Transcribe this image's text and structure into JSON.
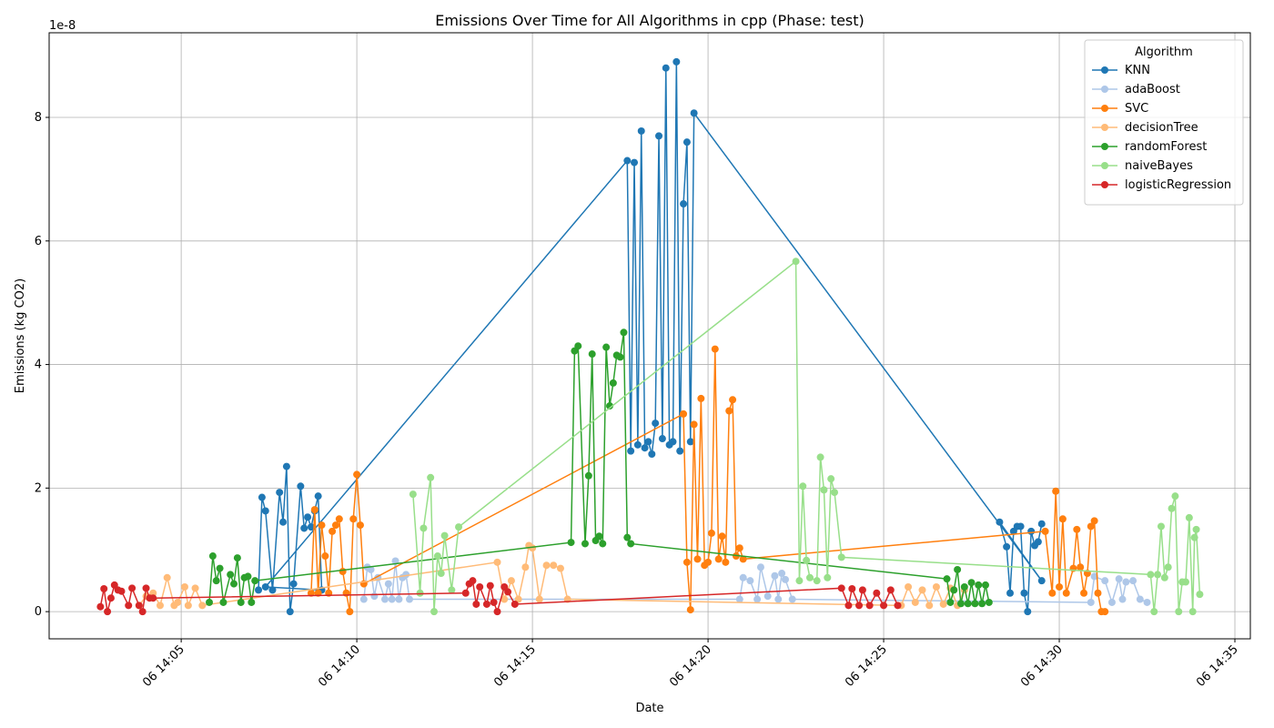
{
  "chart_data": {
    "type": "line",
    "title": "Emissions Over Time for All Algorithms in cpp (Phase: test)",
    "x_label": "Date",
    "y_label": "Emissions (kg CO2)",
    "y_offset_label": "1e-8",
    "legend_title": "Algorithm",
    "legend_position": "upper right",
    "grid": true,
    "markers": true,
    "xlim": [
      841.24,
      875.44
    ],
    "ylim": [
      -0.44,
      9.37
    ],
    "xticks": [
      {
        "value": 845,
        "label": "06 14:05"
      },
      {
        "value": 850,
        "label": "06 14:10"
      },
      {
        "value": 855,
        "label": "06 14:15"
      },
      {
        "value": 860,
        "label": "06 14:20"
      },
      {
        "value": 865,
        "label": "06 14:25"
      },
      {
        "value": 870,
        "label": "06 14:30"
      },
      {
        "value": 875,
        "label": "06 14:35"
      }
    ],
    "yticks": [
      0,
      2,
      4,
      6,
      8
    ],
    "series": [
      {
        "name": "KNN",
        "color": "#1f77b4",
        "x": [
          847.2,
          847.3,
          847.4,
          847.6,
          847.8,
          847.9,
          848.0,
          848.1,
          848.2,
          848.4,
          848.5,
          848.6,
          848.7,
          848.8,
          848.9,
          849.0,
          847.4,
          857.7,
          857.8,
          857.9,
          858.0,
          858.1,
          858.2,
          858.3,
          858.4,
          858.5,
          858.6,
          858.7,
          858.8,
          858.9,
          859.0,
          859.1,
          859.2,
          859.3,
          859.4,
          859.5,
          859.6,
          869.5,
          868.3,
          868.5,
          868.6,
          868.7,
          868.8,
          868.9,
          869.0,
          869.1,
          869.2,
          869.3,
          869.4,
          869.5
        ],
        "values": [
          0.35,
          1.85,
          1.63,
          0.35,
          1.93,
          1.45,
          2.35,
          0.0,
          0.45,
          2.03,
          1.35,
          1.53,
          1.37,
          1.63,
          1.87,
          0.35,
          0.4,
          7.3,
          2.6,
          7.27,
          2.7,
          7.78,
          2.65,
          2.75,
          2.55,
          3.05,
          7.7,
          2.8,
          8.8,
          2.7,
          2.75,
          8.9,
          2.6,
          6.6,
          7.6,
          2.75,
          8.07,
          0.5,
          1.45,
          1.05,
          0.3,
          1.3,
          1.38,
          1.38,
          0.3,
          0.0,
          1.3,
          1.07,
          1.13,
          1.42
        ]
      },
      {
        "name": "adaBoost",
        "color": "#aec7e8",
        "x": [
          850.2,
          850.3,
          850.4,
          850.5,
          850.6,
          850.8,
          850.9,
          851.0,
          851.1,
          851.2,
          851.3,
          851.4,
          851.5,
          860.9,
          861.0,
          861.2,
          861.4,
          861.5,
          861.7,
          861.9,
          862.0,
          862.1,
          862.2,
          862.4,
          870.9,
          871.0,
          871.3,
          871.5,
          871.7,
          871.8,
          871.9,
          872.1,
          872.3,
          872.5
        ],
        "values": [
          0.2,
          0.72,
          0.68,
          0.25,
          0.55,
          0.2,
          0.45,
          0.2,
          0.82,
          0.2,
          0.55,
          0.6,
          0.2,
          0.2,
          0.55,
          0.5,
          0.2,
          0.72,
          0.25,
          0.58,
          0.2,
          0.62,
          0.52,
          0.2,
          0.15,
          0.57,
          0.5,
          0.15,
          0.53,
          0.2,
          0.48,
          0.5,
          0.2,
          0.15
        ]
      },
      {
        "name": "SVC",
        "color": "#ff7f0e",
        "x": [
          848.7,
          848.8,
          848.9,
          849.0,
          849.1,
          849.2,
          849.3,
          849.4,
          849.5,
          849.6,
          849.7,
          849.8,
          849.9,
          850.0,
          850.1,
          850.2,
          859.3,
          859.4,
          859.5,
          859.6,
          859.7,
          859.8,
          859.9,
          860.0,
          860.1,
          860.2,
          860.3,
          860.4,
          860.5,
          860.6,
          860.7,
          860.8,
          860.9,
          861.0,
          869.6,
          869.8,
          869.9,
          870.0,
          870.1,
          870.2,
          870.4,
          870.5,
          870.6,
          870.7,
          870.8,
          870.9,
          871.0,
          871.1,
          871.2,
          871.3
        ],
        "values": [
          0.3,
          1.65,
          0.3,
          1.4,
          0.9,
          0.3,
          1.3,
          1.4,
          1.5,
          0.65,
          0.3,
          0.0,
          1.5,
          2.22,
          1.4,
          0.45,
          3.2,
          0.8,
          0.03,
          3.03,
          0.85,
          3.45,
          0.75,
          0.8,
          1.27,
          4.25,
          0.85,
          1.22,
          0.8,
          3.25,
          3.43,
          0.9,
          1.03,
          0.85,
          1.3,
          0.3,
          1.95,
          0.4,
          1.5,
          0.3,
          0.7,
          1.33,
          0.72,
          0.3,
          0.62,
          1.38,
          1.47,
          0.3,
          0.0,
          0.0
        ]
      },
      {
        "name": "decisionTree",
        "color": "#ffbb78",
        "x": [
          843.8,
          844.0,
          844.2,
          844.4,
          844.6,
          844.8,
          844.9,
          845.1,
          845.2,
          845.4,
          845.6,
          854.0,
          854.2,
          854.4,
          854.6,
          854.8,
          854.9,
          855.0,
          855.2,
          855.4,
          855.6,
          855.8,
          856.0,
          865.5,
          865.7,
          865.9,
          866.1,
          866.3,
          866.5,
          866.7,
          866.9,
          867.1,
          867.3
        ],
        "values": [
          0.1,
          0.25,
          0.3,
          0.1,
          0.55,
          0.1,
          0.15,
          0.4,
          0.1,
          0.38,
          0.1,
          0.8,
          0.2,
          0.5,
          0.2,
          0.72,
          1.07,
          1.03,
          0.2,
          0.75,
          0.75,
          0.7,
          0.2,
          0.1,
          0.4,
          0.15,
          0.35,
          0.1,
          0.4,
          0.12,
          0.38,
          0.1,
          0.35
        ]
      },
      {
        "name": "randomForest",
        "color": "#2ca02c",
        "x": [
          845.8,
          845.9,
          846.0,
          846.1,
          846.2,
          846.4,
          846.5,
          846.6,
          846.7,
          846.8,
          846.9,
          847.0,
          847.1,
          856.1,
          856.2,
          856.3,
          856.5,
          856.6,
          856.7,
          856.8,
          856.9,
          857.0,
          857.1,
          857.2,
          857.3,
          857.4,
          857.5,
          857.6,
          857.7,
          857.8,
          866.8,
          866.9,
          867.0,
          867.1,
          867.2,
          867.3,
          867.4,
          867.5,
          867.6,
          867.7,
          867.8,
          867.9,
          868.0
        ],
        "values": [
          0.15,
          0.9,
          0.5,
          0.7,
          0.15,
          0.6,
          0.45,
          0.87,
          0.15,
          0.55,
          0.57,
          0.15,
          0.5,
          1.12,
          4.22,
          4.3,
          1.1,
          2.2,
          4.17,
          1.15,
          1.22,
          1.1,
          4.28,
          3.33,
          3.7,
          4.15,
          4.12,
          4.52,
          1.2,
          1.1,
          0.53,
          0.15,
          0.35,
          0.68,
          0.13,
          0.4,
          0.13,
          0.47,
          0.13,
          0.43,
          0.13,
          0.43,
          0.15
        ]
      },
      {
        "name": "naiveBayes",
        "color": "#98df8a",
        "x": [
          851.6,
          851.8,
          851.9,
          852.1,
          852.2,
          852.3,
          852.4,
          852.5,
          852.7,
          852.9,
          862.5,
          862.6,
          862.7,
          862.8,
          862.9,
          863.1,
          863.2,
          863.3,
          863.4,
          863.5,
          863.6,
          863.8,
          872.6,
          872.7,
          872.8,
          872.9,
          873.0,
          873.1,
          873.2,
          873.3,
          873.4,
          873.5,
          873.6,
          873.7,
          873.8,
          873.85,
          873.9,
          874.0
        ],
        "values": [
          1.9,
          0.3,
          1.35,
          2.17,
          0.0,
          0.9,
          0.62,
          1.23,
          0.35,
          1.37,
          5.67,
          0.5,
          2.03,
          0.83,
          0.55,
          0.5,
          2.5,
          1.97,
          0.55,
          2.15,
          1.93,
          0.88,
          0.6,
          0.0,
          0.6,
          1.38,
          0.55,
          0.72,
          1.67,
          1.87,
          0.0,
          0.48,
          0.48,
          1.52,
          0.0,
          1.2,
          1.33,
          0.28
        ]
      },
      {
        "name": "logisticRegression",
        "color": "#d62728",
        "x": [
          842.7,
          842.8,
          842.9,
          843.0,
          843.1,
          843.2,
          843.3,
          843.5,
          843.6,
          843.8,
          843.9,
          844.0,
          844.1,
          844.2,
          853.1,
          853.2,
          853.3,
          853.4,
          853.5,
          853.7,
          853.8,
          853.9,
          854.0,
          854.2,
          854.3,
          854.5,
          863.8,
          864.0,
          864.1,
          864.3,
          864.4,
          864.6,
          864.8,
          865.0,
          865.2,
          865.4
        ],
        "values": [
          0.08,
          0.37,
          0.0,
          0.22,
          0.43,
          0.35,
          0.33,
          0.1,
          0.38,
          0.1,
          0.0,
          0.38,
          0.22,
          0.22,
          0.3,
          0.45,
          0.5,
          0.12,
          0.4,
          0.12,
          0.42,
          0.15,
          0.0,
          0.4,
          0.32,
          0.12,
          0.38,
          0.1,
          0.37,
          0.1,
          0.35,
          0.1,
          0.3,
          0.1,
          0.35,
          0.1
        ]
      }
    ]
  }
}
